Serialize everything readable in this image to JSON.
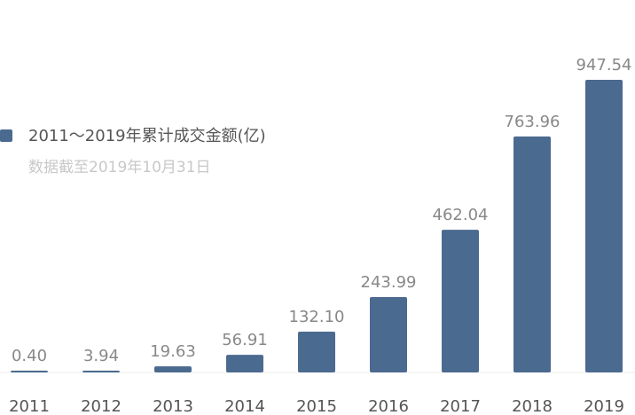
{
  "chart_data": {
    "type": "bar",
    "series": [
      {
        "name": "2011～2019年累计成交金额(亿)",
        "color": "#4b6a8f",
        "values": [
          0.4,
          3.94,
          19.63,
          56.91,
          132.1,
          243.99,
          462.04,
          763.96,
          947.54
        ],
        "value_labels": [
          "0.40",
          "3.94",
          "19.63",
          "56.91",
          "132.10",
          "243.99",
          "462.04",
          "763.96",
          "947.54"
        ]
      }
    ],
    "annotation": "数据截至2019年10月31日",
    "categories": [
      "2011",
      "2012",
      "2013",
      "2014",
      "2015",
      "2016",
      "2017",
      "2018",
      "2019"
    ]
  }
}
